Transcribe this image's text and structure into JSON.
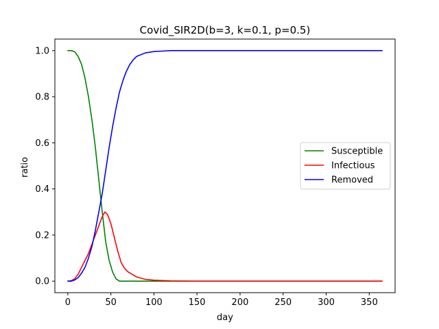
{
  "chart_data": {
    "type": "line",
    "title": "Covid_SIR2D(b=3, k=0.1, p=0.5)",
    "xlabel": "day",
    "ylabel": "ratio",
    "xlim": [
      -15,
      380
    ],
    "ylim": [
      -0.05,
      1.05
    ],
    "xticks": [
      0,
      50,
      100,
      150,
      200,
      250,
      300,
      350
    ],
    "xtick_labels": [
      "0",
      "50",
      "100",
      "150",
      "200",
      "250",
      "300",
      "350"
    ],
    "yticks": [
      0.0,
      0.2,
      0.4,
      0.6,
      0.8,
      1.0
    ],
    "ytick_labels": [
      "0.0",
      "0.2",
      "0.4",
      "0.6",
      "0.8",
      "1.0"
    ],
    "grid": false,
    "legend_position": "center-right",
    "series": [
      {
        "name": "Susceptible",
        "color": "#008000",
        "x": [
          0,
          4,
          8,
          12,
          16,
          20,
          24,
          28,
          32,
          36,
          40,
          44,
          48,
          52,
          56,
          60,
          70,
          80,
          100,
          150,
          200,
          250,
          300,
          365
        ],
        "y": [
          1.0,
          1.0,
          0.995,
          0.975,
          0.94,
          0.88,
          0.8,
          0.7,
          0.58,
          0.44,
          0.3,
          0.17,
          0.09,
          0.04,
          0.01,
          0.0,
          0.0,
          0.0,
          0.0,
          0.0,
          0.0,
          0.0,
          0.0,
          0.0
        ]
      },
      {
        "name": "Infectious",
        "color": "#ff0000",
        "x": [
          0,
          4,
          8,
          12,
          16,
          20,
          24,
          28,
          32,
          36,
          40,
          43,
          46,
          50,
          54,
          58,
          62,
          66,
          70,
          80,
          90,
          100,
          120,
          150,
          200,
          250,
          300,
          365
        ],
        "y": [
          0.0,
          0.002,
          0.01,
          0.03,
          0.06,
          0.09,
          0.12,
          0.16,
          0.2,
          0.24,
          0.28,
          0.3,
          0.29,
          0.25,
          0.19,
          0.13,
          0.08,
          0.055,
          0.04,
          0.018,
          0.008,
          0.004,
          0.001,
          0.0,
          0.0,
          0.0,
          0.0,
          0.0
        ]
      },
      {
        "name": "Removed",
        "color": "#0000ff",
        "x": [
          0,
          4,
          8,
          12,
          16,
          20,
          24,
          28,
          32,
          36,
          40,
          44,
          48,
          52,
          56,
          60,
          64,
          68,
          72,
          76,
          80,
          90,
          100,
          110,
          120,
          150,
          200,
          250,
          300,
          365
        ],
        "y": [
          0.0,
          0.0,
          0.005,
          0.015,
          0.035,
          0.06,
          0.1,
          0.15,
          0.22,
          0.3,
          0.38,
          0.48,
          0.58,
          0.67,
          0.75,
          0.82,
          0.87,
          0.91,
          0.94,
          0.96,
          0.975,
          0.99,
          0.996,
          0.998,
          1.0,
          1.0,
          1.0,
          1.0,
          1.0,
          1.0
        ]
      }
    ]
  }
}
